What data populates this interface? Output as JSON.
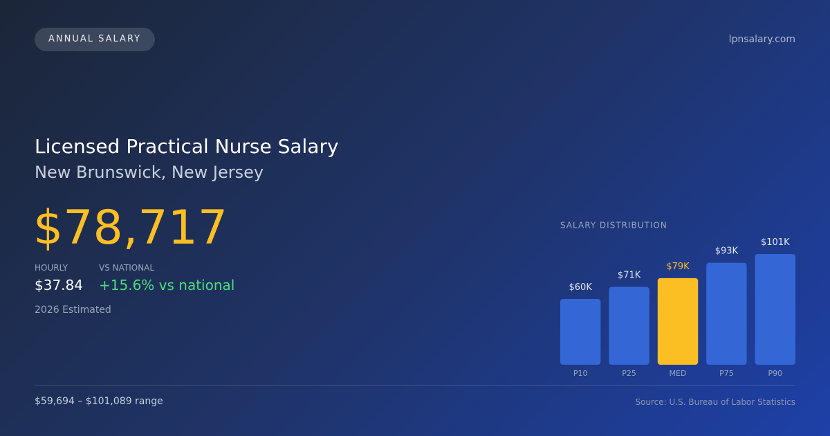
{
  "badge": "ANNUAL SALARY",
  "site": "lpnsalary.com",
  "title": "Licensed Practical Nurse Salary",
  "location": "New Brunswick, New Jersey",
  "salary": "$78,717",
  "stats": [
    {
      "label": "HOURLY",
      "value": "$37.84"
    },
    {
      "label": "VS NATIONAL",
      "value": "+15.6% vs national"
    }
  ],
  "note": "2026 Estimated",
  "range": "$59,694 – $101,089 range",
  "source": "Source: U.S. Bureau of Labor Statistics",
  "chart_data": {
    "type": "bar",
    "title": "SALARY DISTRIBUTION",
    "categories": [
      "P10",
      "P25",
      "MED",
      "P75",
      "P90"
    ],
    "values": [
      60,
      71,
      79,
      93,
      101
    ],
    "value_labels": [
      "$60K",
      "$71K",
      "$79K",
      "$93K",
      "$101K"
    ],
    "colors": [
      "#3466d6",
      "#3466d6",
      "#fbbf24",
      "#3466d6",
      "#3466d6"
    ]
  }
}
